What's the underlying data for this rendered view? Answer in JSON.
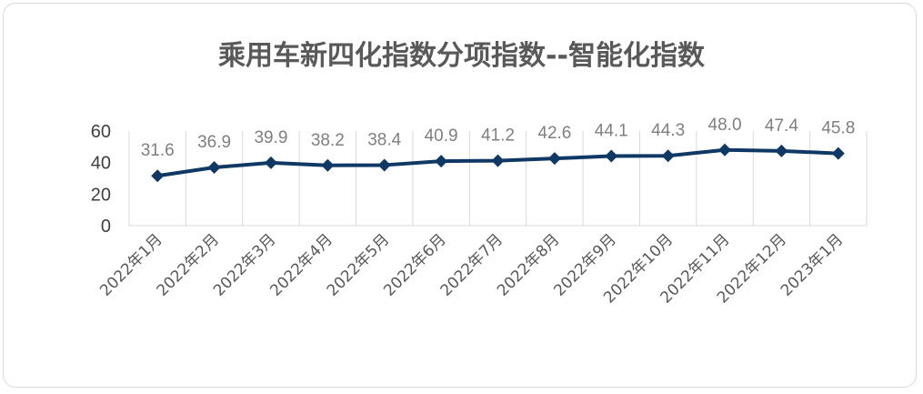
{
  "chart_data": {
    "type": "line",
    "title": "乘用车新四化指数分项指数--智能化指数",
    "categories": [
      "2022年1月",
      "2022年2月",
      "2022年3月",
      "2022年4月",
      "2022年5月",
      "2022年6月",
      "2022年7月",
      "2022年8月",
      "2022年9月",
      "2022年10月",
      "2022年11月",
      "2022年12月",
      "2023年1月"
    ],
    "values": [
      31.6,
      36.9,
      39.9,
      38.2,
      38.4,
      40.9,
      41.2,
      42.6,
      44.1,
      44.3,
      48.0,
      47.4,
      45.8
    ],
    "value_labels": [
      "31.6",
      "36.9",
      "39.9",
      "38.2",
      "38.4",
      "40.9",
      "41.2",
      "42.6",
      "44.1",
      "44.3",
      "48.0",
      "47.4",
      "45.8"
    ],
    "y_ticks": [
      "0",
      "20",
      "40",
      "60"
    ],
    "ylim": [
      0,
      60
    ],
    "grid": "vertical",
    "legend": "none",
    "colors": {
      "line": "#0f3864",
      "grid": "#d9d9d9",
      "labels": "#7f7f7f"
    }
  }
}
